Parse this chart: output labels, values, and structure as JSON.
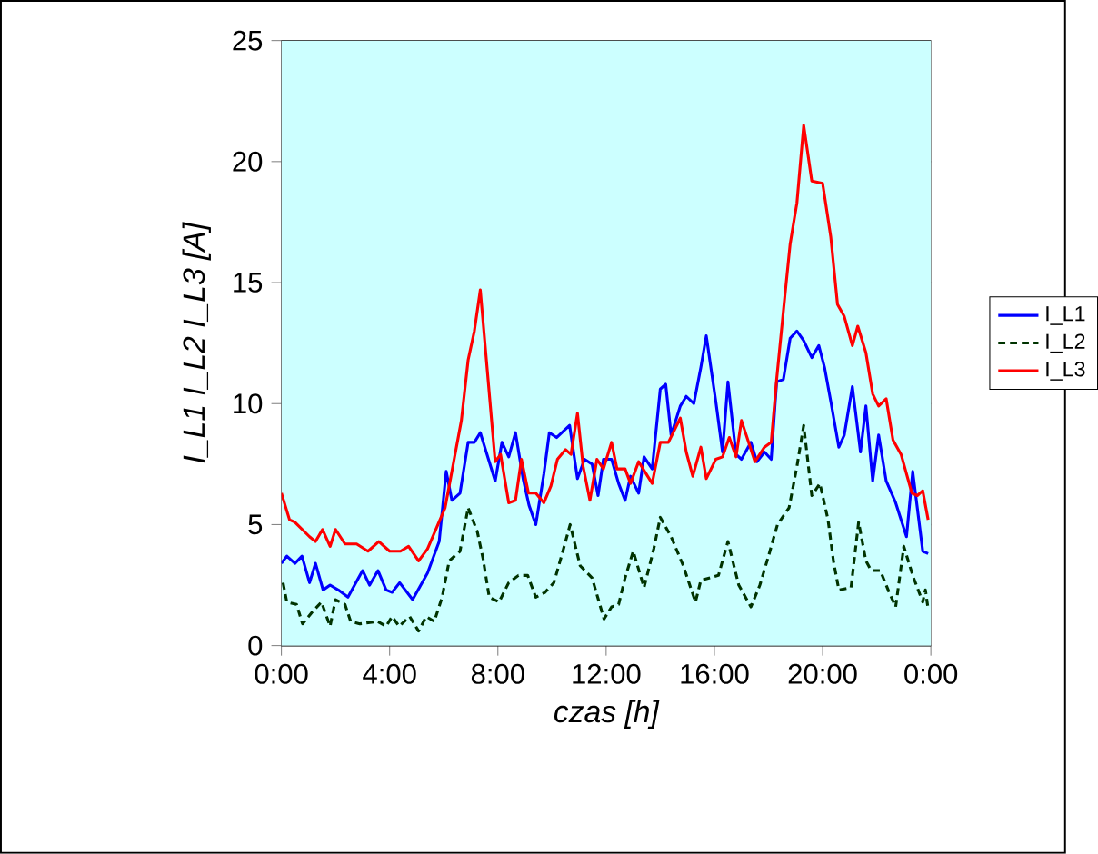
{
  "chart_data": {
    "type": "line",
    "xlabel": "czas [h]",
    "ylabel": "I_L1 I_L2 I_L3  [A]",
    "xlim": [
      0,
      24
    ],
    "ylim": [
      0,
      25
    ],
    "xticks": [
      {
        "value": 0,
        "label": "0:00"
      },
      {
        "value": 4,
        "label": "4:00"
      },
      {
        "value": 8,
        "label": "8:00"
      },
      {
        "value": 12,
        "label": "12:00"
      },
      {
        "value": 16,
        "label": "16:00"
      },
      {
        "value": 20,
        "label": "20:00"
      },
      {
        "value": 24,
        "label": "0:00"
      }
    ],
    "yticks": [
      0,
      5,
      10,
      15,
      20,
      25
    ],
    "grid": "y",
    "legend": "right",
    "marker": "none",
    "series": [
      {
        "name": "I_L1",
        "color": "#0000ff",
        "line_style": "solid",
        "x": [
          0,
          0.2,
          0.5,
          0.76,
          1.04,
          1.26,
          1.54,
          1.8,
          2.1,
          2.46,
          3.0,
          3.26,
          3.57,
          3.87,
          4.09,
          4.37,
          4.85,
          5.4,
          5.83,
          6.09,
          6.3,
          6.6,
          6.9,
          7.13,
          7.35,
          7.9,
          8.15,
          8.4,
          8.65,
          8.93,
          9.15,
          9.4,
          9.7,
          9.9,
          10.17,
          10.65,
          10.94,
          11.2,
          11.48,
          11.7,
          11.9,
          12.2,
          12.46,
          12.7,
          12.9,
          13.2,
          13.4,
          13.7,
          14.0,
          14.2,
          14.4,
          14.74,
          14.96,
          15.24,
          15.5,
          15.7,
          16.05,
          16.3,
          16.5,
          16.8,
          17.0,
          17.35,
          17.57,
          17.85,
          18.1,
          18.3,
          18.55,
          18.8,
          19.05,
          19.3,
          19.6,
          19.86,
          20.07,
          20.3,
          20.6,
          20.8,
          21.1,
          21.4,
          21.6,
          21.85,
          22.07,
          22.35,
          22.7,
          23.1,
          23.33,
          23.7,
          23.9
        ],
        "values": [
          3.4,
          3.7,
          3.4,
          3.7,
          2.6,
          3.4,
          2.3,
          2.5,
          2.3,
          2.0,
          3.1,
          2.5,
          3.1,
          2.3,
          2.2,
          2.6,
          1.9,
          3.0,
          4.3,
          7.2,
          6.0,
          6.3,
          8.4,
          8.4,
          8.8,
          6.8,
          8.4,
          7.8,
          8.8,
          6.9,
          5.8,
          5.0,
          7.1,
          8.8,
          8.6,
          9.1,
          6.9,
          7.7,
          7.5,
          6.2,
          7.7,
          7.7,
          6.7,
          6.0,
          7.0,
          6.3,
          7.8,
          7.3,
          10.6,
          10.8,
          8.7,
          9.9,
          10.3,
          10.0,
          11.5,
          12.8,
          10.1,
          8.0,
          10.9,
          7.9,
          7.7,
          8.4,
          7.6,
          8.0,
          7.7,
          10.9,
          11.0,
          12.7,
          13.0,
          12.6,
          11.9,
          12.4,
          11.5,
          10.1,
          8.2,
          8.7,
          10.7,
          8.0,
          9.9,
          6.8,
          8.7,
          6.8,
          5.9,
          4.5,
          7.2,
          3.9,
          3.8
        ]
      },
      {
        "name": "I_L2",
        "color": "#003300",
        "line_style": "dashed",
        "x": [
          0.06,
          0.2,
          0.56,
          0.78,
          1.15,
          1.48,
          1.8,
          2.0,
          2.35,
          2.56,
          2.9,
          3.55,
          3.87,
          4.09,
          4.35,
          4.74,
          5.07,
          5.35,
          5.65,
          5.94,
          6.2,
          6.6,
          6.9,
          7.24,
          7.45,
          7.68,
          8.04,
          8.4,
          8.76,
          9.1,
          9.4,
          9.74,
          10.07,
          10.4,
          10.67,
          11.04,
          11.48,
          11.92,
          12.2,
          12.46,
          12.7,
          13.0,
          13.4,
          13.76,
          14.0,
          14.4,
          14.85,
          15.3,
          15.5,
          16.15,
          16.5,
          16.9,
          17.35,
          17.68,
          18.0,
          18.33,
          18.76,
          19.05,
          19.3,
          19.6,
          19.9,
          20.2,
          20.4,
          20.6,
          21.05,
          21.33,
          21.6,
          21.8,
          22.13,
          22.46,
          22.7,
          23.0,
          23.33,
          23.7,
          23.8,
          23.9
        ],
        "values": [
          2.6,
          1.8,
          1.7,
          0.9,
          1.4,
          1.8,
          0.8,
          1.9,
          1.7,
          1.0,
          0.9,
          1.0,
          0.8,
          1.2,
          0.8,
          1.2,
          0.6,
          1.2,
          1.0,
          2.0,
          3.5,
          3.9,
          5.7,
          4.7,
          3.6,
          2.0,
          1.8,
          2.6,
          2.9,
          2.9,
          2.0,
          2.2,
          2.6,
          3.9,
          5.0,
          3.3,
          2.8,
          1.1,
          1.6,
          1.7,
          2.8,
          3.9,
          2.4,
          4.0,
          5.3,
          4.5,
          3.3,
          1.8,
          2.7,
          2.9,
          4.3,
          2.5,
          1.6,
          2.5,
          3.7,
          5.0,
          5.7,
          7.4,
          9.1,
          6.2,
          6.7,
          5.2,
          3.5,
          2.3,
          2.4,
          5.1,
          3.5,
          3.1,
          3.1,
          2.2,
          1.6,
          4.1,
          2.9,
          1.8,
          2.3,
          1.5
        ]
      },
      {
        "name": "I_L3",
        "color": "#ff0000",
        "line_style": "solid",
        "x": [
          0,
          0.3,
          0.5,
          1.04,
          1.26,
          1.52,
          1.8,
          2.0,
          2.35,
          2.78,
          3.2,
          3.6,
          4.0,
          4.4,
          4.7,
          5.07,
          5.4,
          6.05,
          6.65,
          6.9,
          7.13,
          7.35,
          7.9,
          8.1,
          8.4,
          8.65,
          8.87,
          9.13,
          9.4,
          9.7,
          9.96,
          10.2,
          10.5,
          10.7,
          10.94,
          11.15,
          11.4,
          11.66,
          11.9,
          12.2,
          12.4,
          12.7,
          12.9,
          13.2,
          13.7,
          14.0,
          14.3,
          14.74,
          14.96,
          15.2,
          15.5,
          15.7,
          16.05,
          16.3,
          16.55,
          16.8,
          17.0,
          17.5,
          17.85,
          18.1,
          18.3,
          18.6,
          18.8,
          19.05,
          19.3,
          19.6,
          20.0,
          20.3,
          20.55,
          20.8,
          21.1,
          21.3,
          21.6,
          21.85,
          22.07,
          22.35,
          22.6,
          22.9,
          23.3,
          23.5,
          23.7,
          23.9
        ],
        "values": [
          6.3,
          5.2,
          5.1,
          4.5,
          4.3,
          4.8,
          4.1,
          4.8,
          4.2,
          4.2,
          3.9,
          4.3,
          3.9,
          3.9,
          4.1,
          3.5,
          4.0,
          5.7,
          9.3,
          11.8,
          13.0,
          14.7,
          7.6,
          7.9,
          5.9,
          6.0,
          7.7,
          6.3,
          6.3,
          5.9,
          6.6,
          7.7,
          8.1,
          7.9,
          9.6,
          7.4,
          6.0,
          7.7,
          7.3,
          8.4,
          7.3,
          7.3,
          6.7,
          7.6,
          6.7,
          8.4,
          8.4,
          9.4,
          8.0,
          7.0,
          8.2,
          6.9,
          7.7,
          7.8,
          8.6,
          7.8,
          9.3,
          7.6,
          8.2,
          8.4,
          11.0,
          14.4,
          16.6,
          18.3,
          21.5,
          19.2,
          19.1,
          16.9,
          14.1,
          13.6,
          12.4,
          13.2,
          12.1,
          10.4,
          9.9,
          10.2,
          8.5,
          7.9,
          6.3,
          6.2,
          6.4,
          5.2
        ]
      }
    ]
  }
}
